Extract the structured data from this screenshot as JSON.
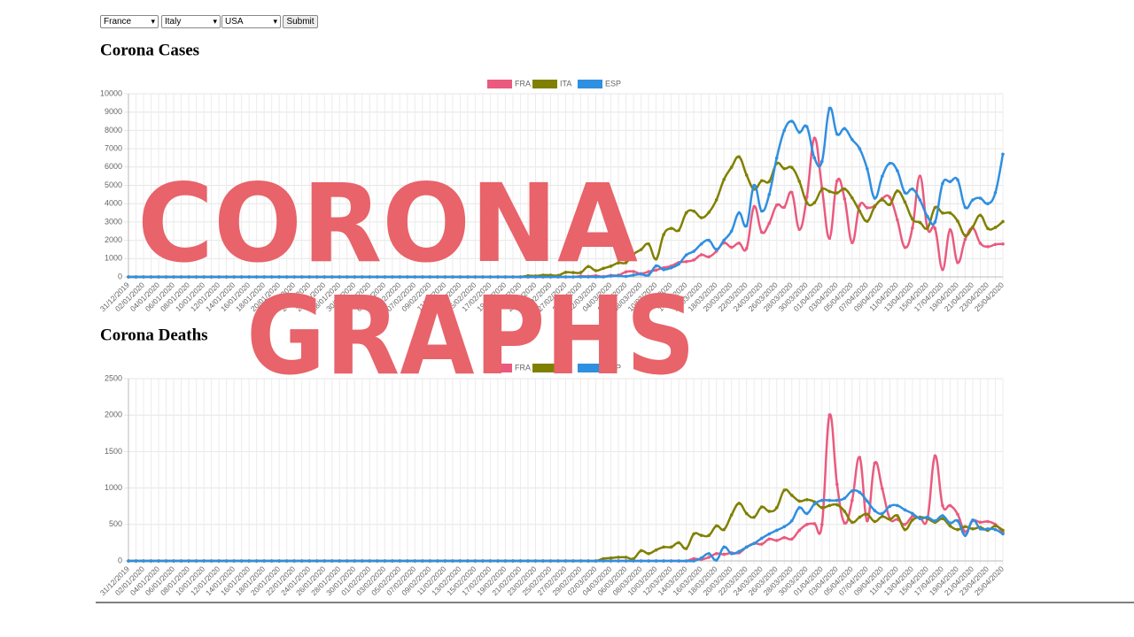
{
  "controls": {
    "selects": [
      "France",
      "Italy",
      "USA"
    ],
    "button": "Submit"
  },
  "overlay": {
    "line1": "CORONA",
    "line2": "GRAPHS"
  },
  "chart_data": [
    {
      "type": "line",
      "title": "Corona Cases",
      "categories": [
        "31/12/2019",
        null,
        "02/01/2020",
        null,
        "04/01/2020",
        null,
        "06/01/2020",
        null,
        "08/01/2020",
        null,
        "10/01/2020",
        null,
        "12/01/2020",
        null,
        "14/01/2020",
        null,
        "16/01/2020",
        null,
        "18/01/2020",
        null,
        "20/01/2020",
        null,
        "22/01/2020",
        null,
        "24/01/2020",
        null,
        "26/01/2020",
        null,
        "28/01/2020",
        null,
        "30/01/2020",
        null,
        "01/02/2020",
        null,
        "03/02/2020",
        null,
        "05/02/2020",
        null,
        "07/02/2020",
        null,
        "09/02/2020",
        null,
        "11/02/2020",
        null,
        "13/02/2020",
        null,
        "15/02/2020",
        null,
        "17/02/2020",
        null,
        "19/02/2020",
        null,
        "21/02/2020",
        null,
        "23/02/2020",
        null,
        "25/02/2020",
        null,
        "27/02/2020",
        null,
        "29/02/2020",
        null,
        "02/03/2020",
        null,
        "04/03/2020",
        null,
        "06/03/2020",
        null,
        "08/03/2020",
        null,
        "10/03/2020",
        null,
        "12/03/2020",
        null,
        "14/03/2020",
        null,
        "16/03/2020",
        null,
        "18/03/2020",
        null,
        "20/03/2020",
        null,
        "22/03/2020",
        null,
        "24/03/2020",
        null,
        "26/03/2020",
        null,
        "28/03/2020",
        null,
        "30/03/2020",
        null,
        "01/04/2020",
        null,
        "03/04/2020",
        null,
        "05/04/2020",
        null,
        "07/04/2020",
        null,
        "09/04/2020",
        null,
        "11/04/2020",
        null,
        "13/04/2020",
        null,
        "15/04/2020",
        null,
        "17/04/2020",
        null,
        "19/04/2020",
        null,
        "21/04/2020",
        null,
        "23/04/2020",
        null,
        "25/04/2020"
      ],
      "series": [
        {
          "name": "FRA",
          "color": "#ea5a7e",
          "values": [
            0,
            0,
            0,
            0,
            0,
            0,
            0,
            0,
            0,
            0,
            0,
            0,
            0,
            0,
            0,
            0,
            0,
            0,
            0,
            0,
            0,
            0,
            0,
            0,
            0,
            0,
            0,
            0,
            0,
            0,
            0,
            0,
            0,
            0,
            0,
            0,
            0,
            0,
            0,
            0,
            0,
            0,
            0,
            0,
            0,
            0,
            0,
            0,
            0,
            0,
            0,
            0,
            0,
            0,
            0,
            0,
            0,
            0,
            0,
            0,
            43,
            30,
            61,
            13,
            84,
            92,
            276,
            296,
            177,
            286,
            372,
            497,
            595,
            785,
            838,
            924,
            1210,
            1097,
            1404,
            1861,
            1617,
            1847,
            1559,
            3838,
            2446,
            2931,
            3922,
            3809,
            4611,
            2599,
            4376,
            7578,
            4861,
            2116,
            5233,
            4267,
            1873,
            3912,
            3777,
            3881,
            4286,
            4342,
            3114,
            1613,
            2673,
            5497,
            2633,
            2641,
            405,
            2569,
            785,
            2051,
            2667,
            1842,
            1653,
            1773,
            1800
          ]
        },
        {
          "name": "ITA",
          "color": "#808000",
          "values": [
            0,
            0,
            0,
            0,
            0,
            0,
            0,
            0,
            0,
            0,
            0,
            0,
            0,
            0,
            0,
            0,
            0,
            0,
            0,
            0,
            0,
            0,
            0,
            0,
            0,
            0,
            0,
            0,
            0,
            0,
            0,
            0,
            0,
            0,
            0,
            0,
            0,
            0,
            0,
            0,
            0,
            0,
            0,
            0,
            0,
            0,
            0,
            0,
            0,
            0,
            0,
            0,
            0,
            62,
            53,
            97,
            93,
            78,
            250,
            238,
            240,
            566,
            342,
            466,
            587,
            769,
            778,
            1247,
            1492,
            1797,
            977,
            2313,
            2651,
            2547,
            3497,
            3590,
            3233,
            3526,
            4207,
            5322,
            5986,
            6557,
            5560,
            4789,
            5249,
            5210,
            6203,
            5909,
            5974,
            5217,
            4050,
            4053,
            4782,
            4668,
            4585,
            4805,
            4316,
            3599,
            3039,
            3836,
            4204,
            3951,
            4694,
            4092,
            3153,
            2972,
            2667,
            3786,
            3493,
            3491,
            3047,
            2256,
            2729,
            3370,
            2646,
            2700,
            3021
          ]
        },
        {
          "name": "ESP",
          "color": "#2f8fe0",
          "values": [
            0,
            0,
            0,
            0,
            0,
            0,
            0,
            0,
            0,
            0,
            0,
            0,
            0,
            0,
            0,
            0,
            0,
            0,
            0,
            0,
            0,
            0,
            0,
            0,
            0,
            0,
            0,
            0,
            0,
            0,
            0,
            0,
            0,
            0,
            0,
            0,
            0,
            0,
            0,
            0,
            0,
            0,
            0,
            0,
            0,
            0,
            0,
            0,
            0,
            0,
            0,
            0,
            0,
            0,
            0,
            0,
            0,
            0,
            0,
            0,
            0,
            0,
            0,
            0,
            45,
            60,
            30,
            100,
            150,
            100,
            600,
            400,
            500,
            700,
            1200,
            1400,
            1800,
            2000,
            1500,
            2000,
            2500,
            3500,
            2800,
            5000,
            3600,
            4500,
            6500,
            8000,
            8500,
            7900,
            8200,
            6500,
            6300,
            9200,
            7800,
            8100,
            7500,
            7000,
            5900,
            4300,
            5500,
            6200,
            5800,
            4600,
            4800,
            4200,
            3300,
            3000,
            5100,
            5200,
            5300,
            3800,
            4200,
            4300,
            4000,
            4600,
            6700
          ]
        }
      ],
      "ylim": [
        0,
        10000
      ],
      "yticks": [
        0,
        1000,
        2000,
        3000,
        4000,
        5000,
        6000,
        7000,
        8000,
        9000,
        10000
      ],
      "grid": true,
      "legend": "top"
    },
    {
      "type": "line",
      "title": "Corona Deaths",
      "categories": [
        "31/12/2019",
        null,
        "02/01/2020",
        null,
        "04/01/2020",
        null,
        "06/01/2020",
        null,
        "08/01/2020",
        null,
        "10/01/2020",
        null,
        "12/01/2020",
        null,
        "14/01/2020",
        null,
        "16/01/2020",
        null,
        "18/01/2020",
        null,
        "20/01/2020",
        null,
        "22/01/2020",
        null,
        "24/01/2020",
        null,
        "26/01/2020",
        null,
        "28/01/2020",
        null,
        "30/01/2020",
        null,
        "01/02/2020",
        null,
        "03/02/2020",
        null,
        "05/02/2020",
        null,
        "07/02/2020",
        null,
        "09/02/2020",
        null,
        "11/02/2020",
        null,
        "13/02/2020",
        null,
        "15/02/2020",
        null,
        "17/02/2020",
        null,
        "19/02/2020",
        null,
        "21/02/2020",
        null,
        "23/02/2020",
        null,
        "25/02/2020",
        null,
        "27/02/2020",
        null,
        "29/02/2020",
        null,
        "02/03/2020",
        null,
        "04/03/2020",
        null,
        "06/03/2020",
        null,
        "08/03/2020",
        null,
        "10/03/2020",
        null,
        "12/03/2020",
        null,
        "14/03/2020",
        null,
        "16/03/2020",
        null,
        "18/03/2020",
        null,
        "20/03/2020",
        null,
        "22/03/2020",
        null,
        "24/03/2020",
        null,
        "26/03/2020",
        null,
        "28/03/2020",
        null,
        "30/03/2020",
        null,
        "01/04/2020",
        null,
        "03/04/2020",
        null,
        "05/04/2020",
        null,
        "07/04/2020",
        null,
        "09/04/2020",
        null,
        "11/04/2020",
        null,
        "13/04/2020",
        null,
        "15/04/2020",
        null,
        "17/04/2020",
        null,
        "19/04/2020",
        null,
        "21/04/2020",
        null,
        "23/04/2020",
        null,
        "25/04/2020"
      ],
      "series": [
        {
          "name": "FRA",
          "color": "#ea5a7e",
          "values": [
            0,
            0,
            0,
            0,
            0,
            0,
            0,
            0,
            0,
            0,
            0,
            0,
            0,
            0,
            0,
            0,
            0,
            0,
            0,
            0,
            0,
            0,
            0,
            0,
            0,
            0,
            0,
            0,
            0,
            0,
            0,
            0,
            0,
            0,
            0,
            0,
            0,
            0,
            0,
            0,
            0,
            0,
            0,
            0,
            0,
            0,
            0,
            0,
            0,
            0,
            0,
            0,
            0,
            0,
            0,
            0,
            0,
            0,
            0,
            0,
            0,
            0,
            0,
            0,
            0,
            0,
            0,
            0,
            0,
            0,
            0,
            0,
            0,
            0,
            0,
            30,
            20,
            50,
            100,
            90,
            110,
            110,
            190,
            240,
            230,
            300,
            280,
            320,
            300,
            420,
            500,
            510,
            500,
            2000,
            1050,
            520,
            830,
            1420,
            550,
            1340,
            990,
            580,
            570,
            500,
            610,
            590,
            580,
            1440,
            760,
            760,
            640,
            400,
            550,
            530,
            540,
            500,
            390
          ]
        },
        {
          "name": "ITA",
          "color": "#808000",
          "values": [
            0,
            0,
            0,
            0,
            0,
            0,
            0,
            0,
            0,
            0,
            0,
            0,
            0,
            0,
            0,
            0,
            0,
            0,
            0,
            0,
            0,
            0,
            0,
            0,
            0,
            0,
            0,
            0,
            0,
            0,
            0,
            0,
            0,
            0,
            0,
            0,
            0,
            0,
            0,
            0,
            0,
            0,
            0,
            0,
            0,
            0,
            0,
            0,
            0,
            0,
            0,
            0,
            0,
            0,
            0,
            0,
            0,
            0,
            0,
            0,
            0,
            0,
            0,
            30,
            40,
            50,
            50,
            30,
            140,
            100,
            150,
            190,
            190,
            250,
            170,
            370,
            350,
            350,
            480,
            430,
            630,
            790,
            650,
            600,
            740,
            680,
            730,
            970,
            900,
            820,
            840,
            810,
            730,
            760,
            770,
            680,
            530,
            600,
            640,
            540,
            610,
            570,
            620,
            430,
            560,
            600,
            580,
            530,
            580,
            480,
            430,
            470,
            440,
            460,
            420,
            480,
            420
          ]
        },
        {
          "name": "ESP",
          "color": "#2f8fe0",
          "values": [
            0,
            0,
            0,
            0,
            0,
            0,
            0,
            0,
            0,
            0,
            0,
            0,
            0,
            0,
            0,
            0,
            0,
            0,
            0,
            0,
            0,
            0,
            0,
            0,
            0,
            0,
            0,
            0,
            0,
            0,
            0,
            0,
            0,
            0,
            0,
            0,
            0,
            0,
            0,
            0,
            0,
            0,
            0,
            0,
            0,
            0,
            0,
            0,
            0,
            0,
            0,
            0,
            0,
            0,
            0,
            0,
            0,
            0,
            0,
            0,
            0,
            0,
            0,
            0,
            0,
            0,
            0,
            0,
            0,
            0,
            0,
            0,
            0,
            0,
            0,
            0,
            40,
            100,
            10,
            190,
            100,
            130,
            190,
            240,
            310,
            370,
            420,
            470,
            550,
            730,
            650,
            780,
            830,
            830,
            830,
            860,
            960,
            940,
            820,
            690,
            650,
            750,
            760,
            700,
            650,
            580,
            600,
            550,
            620,
            520,
            550,
            350,
            560,
            440,
            440,
            430,
            370
          ]
        }
      ],
      "ylim": [
        0,
        2500
      ],
      "yticks": [
        0,
        500,
        1000,
        1500,
        2000,
        2500
      ],
      "grid": true,
      "legend": "top"
    }
  ]
}
